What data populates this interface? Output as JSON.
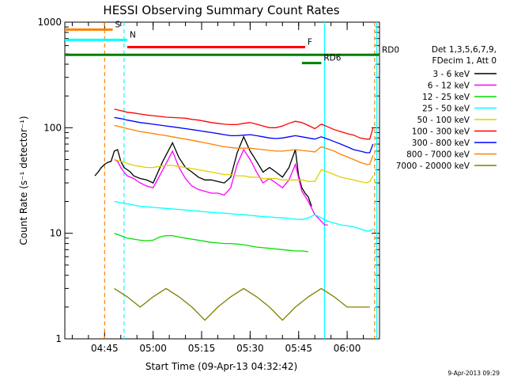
{
  "chart_data": {
    "type": "line",
    "title": "HESSI Observing Summary Count Rates",
    "xlabel": "Start Time (09-Apr-13 04:32:42)",
    "ylabel": "Count Rate (s⁻¹ detector⁻¹)",
    "yscale": "log",
    "ylim": [
      1,
      1000
    ],
    "xlim": [
      "04:32:42",
      "06:10:00"
    ],
    "x_ticks": [
      "04:45",
      "05:00",
      "05:15",
      "05:30",
      "05:45",
      "06:00"
    ],
    "y_ticks": [
      "1",
      "10",
      "100",
      "1000"
    ],
    "legend_header": [
      "Det 1,3,5,6,7,9,",
      "FDecim 1, Att 0"
    ],
    "series": [
      {
        "name": "3 - 6 keV",
        "color": "#000000",
        "x": [
          "04:42",
          "04:43",
          "04:44",
          "04:45",
          "04:46",
          "04:47",
          "04:48",
          "04:49",
          "04:50",
          "04:51",
          "04:52",
          "04:53",
          "04:54",
          "04:55",
          "04:56",
          "04:58",
          "05:00",
          "05:03",
          "05:06",
          "05:08",
          "05:10",
          "05:12",
          "05:14",
          "05:16",
          "05:18",
          "05:20",
          "05:22",
          "05:24",
          "05:26",
          "05:28",
          "05:30",
          "05:32",
          "05:34",
          "05:36",
          "05:38",
          "05:40",
          "05:42",
          "05:44",
          "05:45",
          "05:46",
          "05:47",
          "05:48",
          "05:49"
        ],
        "y": [
          35,
          38,
          42,
          45,
          47,
          48,
          60,
          62,
          48,
          42,
          40,
          38,
          35,
          34,
          33,
          32,
          30,
          48,
          72,
          52,
          42,
          38,
          34,
          32,
          32,
          31,
          30,
          34,
          58,
          82,
          60,
          48,
          38,
          42,
          38,
          34,
          42,
          62,
          35,
          27,
          24,
          22,
          18
        ]
      },
      {
        "name": "6 - 12 keV",
        "color": "#ff00ff",
        "x": [
          "04:48",
          "04:49",
          "04:50",
          "04:51",
          "04:52",
          "04:54",
          "04:56",
          "04:58",
          "05:00",
          "05:03",
          "05:06",
          "05:08",
          "05:10",
          "05:12",
          "05:14",
          "05:16",
          "05:18",
          "05:20",
          "05:22",
          "05:24",
          "05:26",
          "05:28",
          "05:30",
          "05:32",
          "05:34",
          "05:36",
          "05:38",
          "05:40",
          "05:42",
          "05:44",
          "05:46",
          "05:48",
          "05:50",
          "05:51",
          "05:52",
          "05:53",
          "05:54"
        ],
        "y": [
          50,
          48,
          42,
          38,
          35,
          33,
          30,
          28,
          27,
          40,
          60,
          42,
          33,
          28,
          26,
          25,
          24,
          24,
          23,
          27,
          45,
          62,
          50,
          38,
          30,
          33,
          30,
          27,
          32,
          45,
          25,
          20,
          15,
          14,
          13,
          12,
          12
        ]
      },
      {
        "name": "12 - 25 keV",
        "color": "#00e000",
        "x": [
          "04:48",
          "04:50",
          "04:52",
          "04:54",
          "04:56",
          "04:58",
          "05:00",
          "05:02",
          "05:04",
          "05:06",
          "05:08",
          "05:10",
          "05:12",
          "05:14",
          "05:16",
          "05:18",
          "05:20",
          "05:22",
          "05:24",
          "05:26",
          "05:28",
          "05:30",
          "05:32",
          "05:34",
          "05:36",
          "05:38",
          "05:40",
          "05:42",
          "05:44",
          "05:46",
          "05:48"
        ],
        "y": [
          10,
          9.5,
          9,
          8.8,
          8.6,
          8.5,
          8.6,
          9.2,
          9.5,
          9.5,
          9.2,
          9,
          8.8,
          8.6,
          8.4,
          8.2,
          8.1,
          8,
          8,
          7.9,
          7.8,
          7.6,
          7.4,
          7.3,
          7.2,
          7.1,
          7,
          6.9,
          6.8,
          6.8,
          6.7
        ]
      },
      {
        "name": "25 - 50 keV",
        "color": "#00ffff",
        "x": [
          "04:48",
          "04:50",
          "04:52",
          "04:54",
          "04:56",
          "04:58",
          "05:00",
          "05:02",
          "05:04",
          "05:06",
          "05:08",
          "05:10",
          "05:12",
          "05:14",
          "05:16",
          "05:18",
          "05:20",
          "05:22",
          "05:24",
          "05:26",
          "05:28",
          "05:30",
          "05:32",
          "05:34",
          "05:36",
          "05:38",
          "05:40",
          "05:42",
          "05:44",
          "05:46",
          "05:48",
          "05:50",
          "05:52",
          "05:54",
          "05:56",
          "05:58",
          "06:00",
          "06:02",
          "06:04",
          "06:06",
          "06:07",
          "06:08"
        ],
        "y": [
          20,
          19.5,
          19,
          18.5,
          18,
          17.8,
          17.6,
          17.4,
          17.2,
          17,
          16.8,
          16.6,
          16.4,
          16.2,
          16,
          15.8,
          15.6,
          15.5,
          15.3,
          15.1,
          15,
          14.8,
          14.6,
          14.4,
          14.3,
          14.1,
          14,
          13.8,
          13.6,
          13.5,
          14,
          15,
          14,
          13,
          12.5,
          12,
          11.8,
          11.5,
          11,
          10.5,
          10.5,
          11
        ]
      },
      {
        "name": "50 - 100 keV",
        "color": "#e0d000",
        "x": [
          "04:48",
          "04:50",
          "04:52",
          "04:54",
          "04:56",
          "04:58",
          "05:00",
          "05:02",
          "05:04",
          "05:06",
          "05:08",
          "05:10",
          "05:12",
          "05:14",
          "05:16",
          "05:18",
          "05:20",
          "05:22",
          "05:24",
          "05:26",
          "05:28",
          "05:30",
          "05:32",
          "05:34",
          "05:36",
          "05:38",
          "05:40",
          "05:42",
          "05:44",
          "05:46",
          "05:48",
          "05:50",
          "05:52",
          "05:54",
          "05:56",
          "05:58",
          "06:00",
          "06:02",
          "06:04",
          "06:06",
          "06:07",
          "06:08"
        ],
        "y": [
          50,
          48,
          46,
          44,
          43,
          42,
          42,
          43,
          44,
          44,
          43,
          42,
          41,
          40,
          39,
          38,
          37,
          36,
          36,
          35,
          35,
          34,
          34,
          33,
          33,
          33,
          32,
          32,
          32,
          32,
          31,
          31,
          40,
          38,
          36,
          34,
          33,
          32,
          31,
          30,
          31,
          35
        ]
      },
      {
        "name": "100 - 300 keV",
        "color": "#ff0000",
        "x": [
          "04:48",
          "04:50",
          "04:52",
          "04:54",
          "04:56",
          "04:58",
          "05:00",
          "05:02",
          "05:04",
          "05:06",
          "05:08",
          "05:10",
          "05:12",
          "05:14",
          "05:16",
          "05:18",
          "05:20",
          "05:22",
          "05:24",
          "05:26",
          "05:28",
          "05:30",
          "05:32",
          "05:34",
          "05:36",
          "05:38",
          "05:40",
          "05:42",
          "05:44",
          "05:46",
          "05:48",
          "05:50",
          "05:52",
          "05:54",
          "05:56",
          "05:58",
          "06:00",
          "06:02",
          "06:04",
          "06:06",
          "06:07",
          "06:08"
        ],
        "y": [
          150,
          145,
          140,
          138,
          135,
          132,
          130,
          128,
          126,
          125,
          124,
          123,
          120,
          118,
          115,
          112,
          110,
          108,
          107,
          107,
          110,
          112,
          108,
          104,
          100,
          100,
          104,
          110,
          115,
          112,
          105,
          98,
          108,
          102,
          96,
          92,
          88,
          85,
          80,
          78,
          78,
          100
        ]
      },
      {
        "name": "300 - 800 keV",
        "color": "#0000ff",
        "x": [
          "04:48",
          "04:50",
          "04:52",
          "04:54",
          "04:56",
          "04:58",
          "05:00",
          "05:02",
          "05:04",
          "05:06",
          "05:08",
          "05:10",
          "05:12",
          "05:14",
          "05:16",
          "05:18",
          "05:20",
          "05:22",
          "05:24",
          "05:26",
          "05:28",
          "05:30",
          "05:32",
          "05:34",
          "05:36",
          "05:38",
          "05:40",
          "05:42",
          "05:44",
          "05:46",
          "05:48",
          "05:50",
          "05:52",
          "05:54",
          "05:56",
          "05:58",
          "06:00",
          "06:02",
          "06:04",
          "06:06",
          "06:07",
          "06:08"
        ],
        "y": [
          125,
          122,
          118,
          115,
          112,
          110,
          108,
          106,
          104,
          102,
          100,
          98,
          96,
          94,
          92,
          90,
          88,
          86,
          84,
          84,
          85,
          86,
          84,
          82,
          80,
          79,
          80,
          82,
          84,
          82,
          80,
          78,
          82,
          78,
          74,
          70,
          66,
          62,
          60,
          58,
          58,
          70
        ]
      },
      {
        "name": "800 - 7000 keV",
        "color": "#ff8000",
        "x": [
          "04:48",
          "04:50",
          "04:52",
          "04:54",
          "04:56",
          "04:58",
          "05:00",
          "05:02",
          "05:04",
          "05:06",
          "05:08",
          "05:10",
          "05:12",
          "05:14",
          "05:16",
          "05:18",
          "05:20",
          "05:22",
          "05:24",
          "05:26",
          "05:28",
          "05:30",
          "05:32",
          "05:34",
          "05:36",
          "05:38",
          "05:40",
          "05:42",
          "05:44",
          "05:46",
          "05:48",
          "05:50",
          "05:52",
          "05:54",
          "05:56",
          "05:58",
          "06:00",
          "06:02",
          "06:04",
          "06:06",
          "06:07",
          "06:08"
        ],
        "y": [
          105,
          102,
          98,
          95,
          92,
          90,
          88,
          86,
          84,
          82,
          80,
          78,
          76,
          74,
          72,
          70,
          68,
          66,
          65,
          64,
          64,
          64,
          63,
          62,
          61,
          60,
          60,
          61,
          62,
          61,
          60,
          59,
          66,
          63,
          60,
          56,
          53,
          50,
          47,
          45,
          45,
          55
        ]
      },
      {
        "name": "7000 - 20000 keV",
        "color": "#808000",
        "x": [
          "04:48",
          "04:52",
          "04:56",
          "05:00",
          "05:04",
          "05:08",
          "05:12",
          "05:16",
          "05:20",
          "05:24",
          "05:28",
          "05:32",
          "05:36",
          "05:40",
          "05:44",
          "05:48",
          "05:52",
          "05:56",
          "06:00",
          "06:04",
          "06:07"
        ],
        "y": [
          3,
          2.5,
          2,
          2.5,
          3,
          2.5,
          2,
          1.5,
          2,
          2.5,
          3,
          2.5,
          2,
          1.5,
          2,
          2.5,
          3,
          2.5,
          2,
          2,
          2
        ]
      }
    ],
    "status_bars": [
      {
        "label": "S",
        "color": "#ff8000",
        "start": "04:32:42",
        "end": "04:47:30",
        "y": 850
      },
      {
        "label": "N",
        "color": "#00ffff",
        "start": "04:32:42",
        "end": "04:52:00",
        "y": 680
      },
      {
        "label": "F",
        "color": "#ff0000",
        "start": "04:52:00",
        "end": "05:47:00",
        "y": 580
      },
      {
        "label": "RD0",
        "color": "#008000",
        "start": "04:32:42",
        "end": "06:10:00",
        "y": 490
      },
      {
        "label": "RD6",
        "color": "#008000",
        "start": "05:46:00",
        "end": "05:52:00",
        "y": 410
      }
    ],
    "vertical_markers": [
      {
        "x": "04:45:00",
        "color": "#ff8000",
        "style": "dashed"
      },
      {
        "x": "04:51:00",
        "color": "#00ffff",
        "style": "dashed"
      },
      {
        "x": "05:53:00",
        "color": "#00ffff",
        "style": "solid"
      },
      {
        "x": "06:08:30",
        "color": "#ff8000",
        "style": "dashed"
      },
      {
        "x": "06:09:10",
        "color": "#00ffff",
        "style": "solid"
      }
    ],
    "legend_position": "right"
  },
  "footer": {
    "timestamp": "9-Apr-2013 09:29"
  }
}
